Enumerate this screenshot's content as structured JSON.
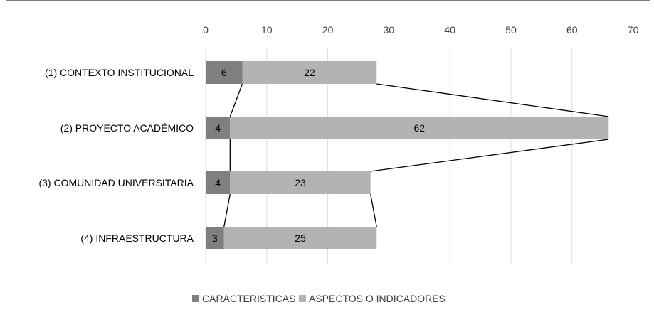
{
  "chart_data": {
    "type": "bar",
    "orientation": "horizontal",
    "stacked": true,
    "categories": [
      "(1) CONTEXTO INSTITUCIONAL",
      "(2) PROYECTO ACADÉMICO",
      "(3) COMUNIDAD UNIVERSITARIA",
      "(4) INFRAESTRUCTURA"
    ],
    "series": [
      {
        "name": "CARACTERÍSTICAS",
        "values": [
          6,
          4,
          4,
          3
        ],
        "color": "#7f7f7f"
      },
      {
        "name": "ASPECTOS O INDICADORES",
        "values": [
          22,
          62,
          23,
          25
        ],
        "color": "#b3b3b3"
      }
    ],
    "xlim": [
      0,
      70
    ],
    "x_ticks": [
      "0",
      "10",
      "20",
      "30",
      "40",
      "50",
      "60",
      "70"
    ],
    "x_axis_position": "top",
    "grid": true,
    "gridline_color": "#d6dde8",
    "data_labels": true,
    "series_lines": true,
    "legend": "bottom"
  }
}
